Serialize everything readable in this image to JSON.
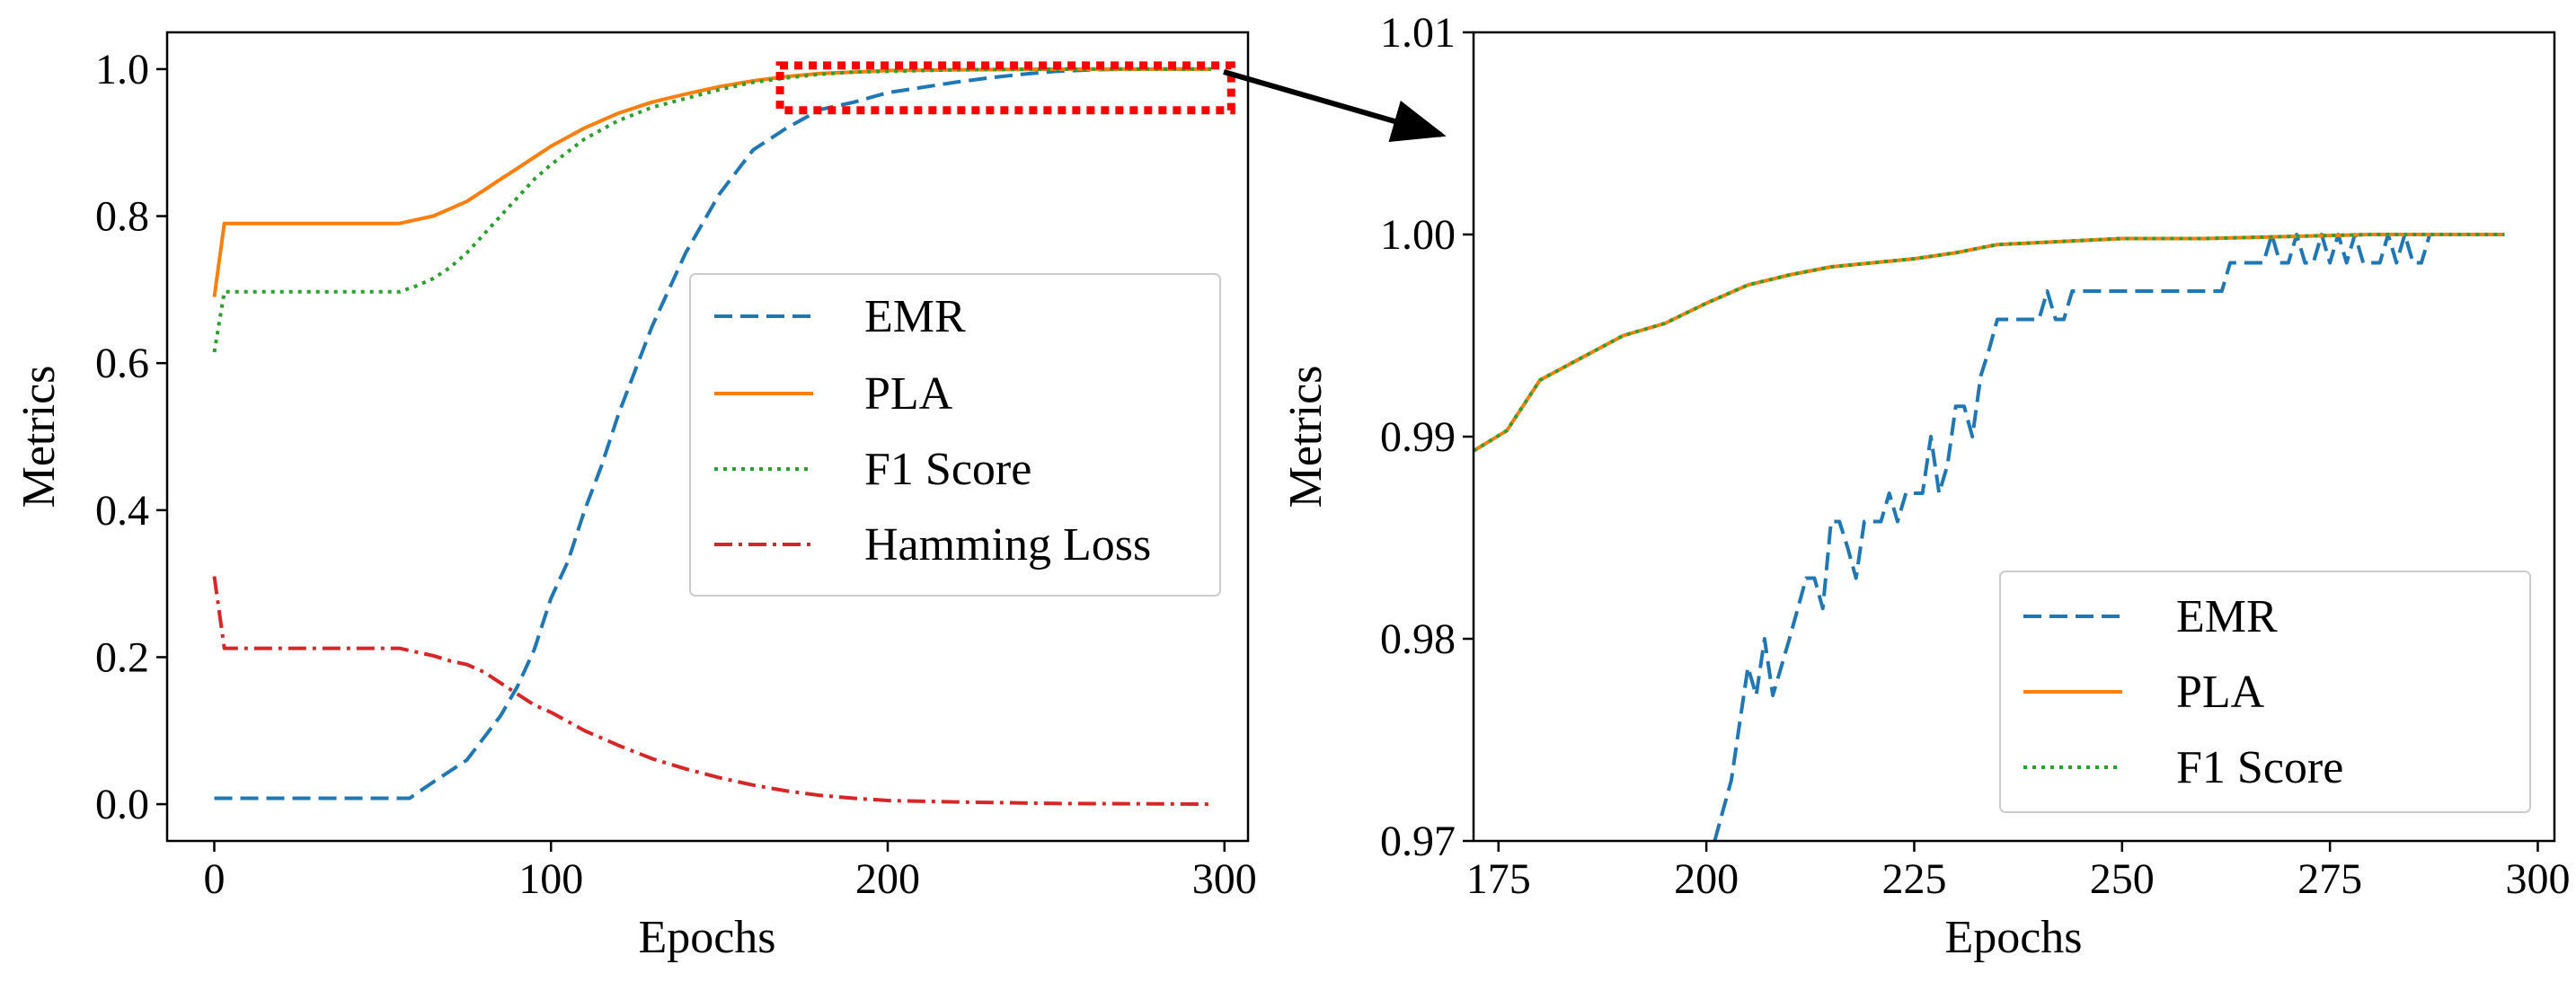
{
  "chart_data": [
    {
      "type": "line",
      "title": "",
      "xlabel": "Epochs",
      "ylabel": "Metrics",
      "xlim": [
        -14,
        307
      ],
      "ylim": [
        -0.05,
        1.05
      ],
      "xticks": [
        0,
        100,
        200,
        300
      ],
      "yticks": [
        0.0,
        0.2,
        0.4,
        0.6,
        0.8,
        1.0
      ],
      "xtick_labels": [
        "0",
        "100",
        "200",
        "300"
      ],
      "ytick_labels": [
        "0.0",
        "0.2",
        "0.4",
        "0.6",
        "0.8",
        "1.0"
      ],
      "legend_position": "center-right",
      "series": [
        {
          "name": "EMR",
          "color": "#1f77b4",
          "dash": "dashed",
          "x": [
            0,
            50,
            58,
            65,
            75,
            85,
            90,
            95,
            100,
            105,
            110,
            115,
            120,
            125,
            130,
            135,
            140,
            150,
            160,
            170,
            180,
            190,
            200,
            210,
            220,
            230,
            240,
            250,
            260,
            270,
            280,
            290,
            296
          ],
          "y": [
            0.008,
            0.008,
            0.008,
            0.03,
            0.06,
            0.12,
            0.16,
            0.21,
            0.28,
            0.33,
            0.4,
            0.46,
            0.53,
            0.59,
            0.65,
            0.7,
            0.75,
            0.83,
            0.89,
            0.92,
            0.945,
            0.955,
            0.968,
            0.975,
            0.982,
            0.988,
            0.993,
            0.997,
            0.999,
            1.0,
            1.0,
            1.0,
            1.0
          ]
        },
        {
          "name": "PLA",
          "color": "#ff7f0e",
          "dash": "solid",
          "x": [
            0,
            3,
            10,
            30,
            55,
            60,
            65,
            70,
            75,
            80,
            85,
            90,
            95,
            100,
            110,
            120,
            130,
            140,
            150,
            160,
            170,
            180,
            190,
            200,
            220,
            250,
            280,
            296
          ],
          "y": [
            0.69,
            0.79,
            0.79,
            0.79,
            0.79,
            0.795,
            0.8,
            0.81,
            0.82,
            0.835,
            0.85,
            0.865,
            0.88,
            0.895,
            0.92,
            0.94,
            0.955,
            0.966,
            0.976,
            0.984,
            0.99,
            0.994,
            0.996,
            0.998,
            0.999,
            1.0,
            1.0,
            1.0
          ]
        },
        {
          "name": "F1 Score",
          "color": "#2ca02c",
          "dash": "dotted",
          "x": [
            0,
            3,
            10,
            30,
            55,
            60,
            65,
            70,
            75,
            80,
            85,
            90,
            95,
            100,
            110,
            120,
            130,
            140,
            150,
            160,
            170,
            180,
            190,
            200,
            220,
            250,
            280,
            296
          ],
          "y": [
            0.615,
            0.697,
            0.697,
            0.697,
            0.697,
            0.705,
            0.715,
            0.73,
            0.75,
            0.775,
            0.8,
            0.825,
            0.85,
            0.87,
            0.905,
            0.93,
            0.948,
            0.96,
            0.972,
            0.982,
            0.988,
            0.993,
            0.996,
            0.997,
            0.999,
            1.0,
            1.0,
            1.0
          ]
        },
        {
          "name": "Hamming Loss",
          "color": "#d62728",
          "dash": "dashdot",
          "x": [
            0,
            3,
            10,
            30,
            55,
            60,
            65,
            70,
            75,
            80,
            85,
            90,
            95,
            100,
            110,
            120,
            130,
            140,
            150,
            160,
            170,
            180,
            190,
            200,
            220,
            250,
            280,
            296
          ],
          "y": [
            0.31,
            0.212,
            0.212,
            0.212,
            0.212,
            0.207,
            0.202,
            0.195,
            0.19,
            0.18,
            0.165,
            0.15,
            0.135,
            0.125,
            0.1,
            0.08,
            0.062,
            0.048,
            0.036,
            0.026,
            0.018,
            0.012,
            0.008,
            0.005,
            0.003,
            0.001,
            0.0005,
            0.0
          ]
        }
      ],
      "zoom_box": {
        "x": [
          168,
          302
        ],
        "y": [
          0.944,
          1.005
        ],
        "color": "#ff0000"
      }
    },
    {
      "type": "line",
      "title": "",
      "xlabel": "Epochs",
      "ylabel": "Metrics",
      "xlim": [
        172,
        302
      ],
      "ylim": [
        0.97,
        1.01
      ],
      "xticks": [
        175,
        200,
        225,
        250,
        275,
        300
      ],
      "yticks": [
        0.97,
        0.98,
        0.99,
        1.0,
        1.01
      ],
      "xtick_labels": [
        "175",
        "200",
        "225",
        "250",
        "275",
        "300"
      ],
      "ytick_labels": [
        "0.97",
        "0.98",
        "0.99",
        "1.00",
        "1.01"
      ],
      "legend_position": "lower-right",
      "series": [
        {
          "name": "EMR",
          "color": "#1f77b4",
          "dash": "dashed",
          "x": [
            201,
            202,
            203,
            204,
            205,
            206,
            207,
            208,
            209,
            210,
            211,
            212,
            213,
            214,
            215,
            216,
            217,
            218,
            219,
            220,
            221,
            222,
            223,
            224,
            225,
            226,
            227,
            228,
            229,
            230,
            231,
            232,
            233,
            234,
            235,
            236,
            237,
            238,
            239,
            240,
            241,
            242,
            243,
            244,
            245,
            246,
            248,
            250,
            255,
            260,
            262,
            263,
            264,
            265,
            266,
            267,
            268,
            269,
            270,
            271,
            272,
            273,
            274,
            275,
            276,
            277,
            278,
            279,
            280,
            281,
            282,
            283,
            284,
            285,
            286,
            287
          ],
          "y": [
            0.97,
            0.9715,
            0.973,
            0.9758,
            0.9786,
            0.9772,
            0.98,
            0.9772,
            0.9786,
            0.98,
            0.9815,
            0.983,
            0.983,
            0.9815,
            0.9858,
            0.9858,
            0.9845,
            0.983,
            0.9858,
            0.9858,
            0.9858,
            0.9872,
            0.9858,
            0.9872,
            0.9872,
            0.9872,
            0.99,
            0.9872,
            0.9886,
            0.9915,
            0.9915,
            0.99,
            0.993,
            0.9943,
            0.9958,
            0.9958,
            0.9958,
            0.9958,
            0.9958,
            0.9958,
            0.9972,
            0.9958,
            0.9958,
            0.9972,
            0.9972,
            0.9972,
            0.9972,
            0.9972,
            0.9972,
            0.9972,
            0.9972,
            0.9986,
            0.9986,
            0.9986,
            0.9986,
            0.9986,
            1.0,
            0.9986,
            0.9986,
            1.0,
            0.9986,
            0.9986,
            1.0,
            0.9986,
            1.0,
            0.9986,
            1.0,
            0.9986,
            0.9986,
            0.9986,
            1.0,
            0.9986,
            1.0,
            0.9986,
            0.9986,
            1.0
          ]
        },
        {
          "name": "PLA",
          "color": "#ff7f0e",
          "dash": "solid",
          "x": [
            172,
            176,
            180,
            185,
            190,
            195,
            200,
            205,
            210,
            215,
            220,
            225,
            230,
            235,
            240,
            245,
            250,
            260,
            270,
            280,
            290,
            296
          ],
          "y": [
            0.9893,
            0.9903,
            0.9928,
            0.9939,
            0.995,
            0.9956,
            0.9966,
            0.9975,
            0.998,
            0.9984,
            0.9986,
            0.9988,
            0.9991,
            0.9995,
            0.9996,
            0.9997,
            0.9998,
            0.9998,
            0.9999,
            1.0,
            1.0,
            1.0
          ]
        },
        {
          "name": "F1 Score",
          "color": "#2ca02c",
          "dash": "dotted",
          "x": [
            172,
            176,
            180,
            185,
            190,
            195,
            200,
            205,
            210,
            215,
            220,
            225,
            230,
            235,
            240,
            245,
            250,
            260,
            270,
            280,
            290,
            296
          ],
          "y": [
            0.9893,
            0.9903,
            0.9928,
            0.9939,
            0.995,
            0.9956,
            0.9966,
            0.9975,
            0.998,
            0.9984,
            0.9986,
            0.9988,
            0.9991,
            0.9995,
            0.9996,
            0.9997,
            0.9998,
            0.9998,
            0.9999,
            1.0,
            1.0,
            1.0
          ]
        }
      ]
    }
  ]
}
